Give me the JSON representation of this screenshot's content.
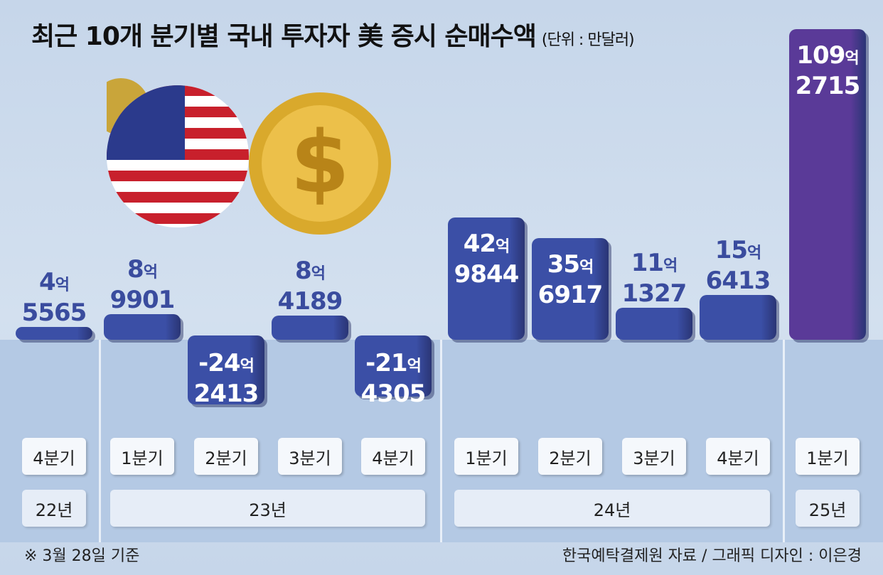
{
  "chart_data": {
    "type": "bar",
    "title": "최근 10개 분기별 국내 투자자 美 증시 순매수액",
    "unit": "(단위 : 만달러)",
    "categories": [
      "4분기",
      "1분기",
      "2분기",
      "3분기",
      "4분기",
      "1분기",
      "2분기",
      "3분기",
      "4분기",
      "1분기"
    ],
    "years": [
      {
        "label": "22년",
        "span": 1
      },
      {
        "label": "23년",
        "span": 4
      },
      {
        "label": "24년",
        "span": 4
      },
      {
        "label": "25년",
        "span": 1
      }
    ],
    "values": [
      45565,
      89901,
      -242413,
      84189,
      -214305,
      429844,
      356917,
      111327,
      156413,
      1092715
    ],
    "labels": [
      [
        "4억",
        "5565"
      ],
      [
        "8억",
        "9901"
      ],
      [
        "-24억",
        "2413"
      ],
      [
        "8억",
        "4189"
      ],
      [
        "-21억",
        "4305"
      ],
      [
        "42억",
        "9844"
      ],
      [
        "35억",
        "6917"
      ],
      [
        "11억",
        "1327"
      ],
      [
        "15억",
        "6413"
      ],
      [
        "109억",
        "2715"
      ]
    ],
    "colors": {
      "bar": "#3b4fa6",
      "highlight": "#5a3a98",
      "label": "#3a4c9e"
    }
  },
  "footer": {
    "note": "※ 3월 28일 기준",
    "source": "한국예탁결제원 자료 / 그래픽 디자인 : 이은경"
  }
}
